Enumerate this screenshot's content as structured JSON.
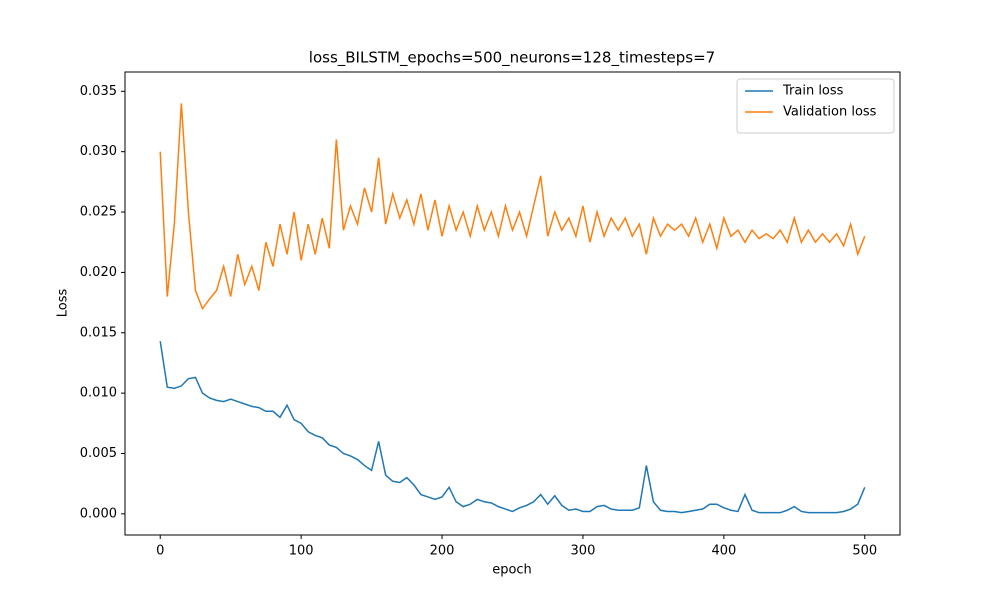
{
  "chart_data": {
    "type": "line",
    "title": "loss_BILSTM_epochs=500_neurons=128_timesteps=7",
    "x_label": "epoch",
    "y_label": "Loss",
    "x": [
      0,
      5,
      10,
      15,
      20,
      25,
      30,
      35,
      40,
      45,
      50,
      55,
      60,
      65,
      70,
      75,
      80,
      85,
      90,
      95,
      100,
      105,
      110,
      115,
      120,
      125,
      130,
      135,
      140,
      145,
      150,
      155,
      160,
      165,
      170,
      175,
      180,
      185,
      190,
      195,
      200,
      205,
      210,
      215,
      220,
      225,
      230,
      235,
      240,
      245,
      250,
      255,
      260,
      265,
      270,
      275,
      280,
      285,
      290,
      295,
      300,
      305,
      310,
      315,
      320,
      325,
      330,
      335,
      340,
      345,
      350,
      355,
      360,
      365,
      370,
      375,
      380,
      385,
      390,
      395,
      400,
      405,
      410,
      415,
      420,
      425,
      430,
      435,
      440,
      445,
      450,
      455,
      460,
      465,
      470,
      475,
      480,
      485,
      490,
      495,
      500
    ],
    "series": [
      {
        "name": "Train loss",
        "color": "#1f77b4",
        "values": [
          0.0143,
          0.0105,
          0.0104,
          0.0106,
          0.0112,
          0.0113,
          0.01,
          0.0096,
          0.0094,
          0.0093,
          0.0095,
          0.0093,
          0.0091,
          0.0089,
          0.0088,
          0.0085,
          0.0085,
          0.008,
          0.009,
          0.0078,
          0.0075,
          0.0068,
          0.0065,
          0.0063,
          0.0057,
          0.0055,
          0.005,
          0.0048,
          0.0045,
          0.004,
          0.0036,
          0.006,
          0.0032,
          0.0027,
          0.0026,
          0.003,
          0.0024,
          0.0016,
          0.0014,
          0.0012,
          0.0014,
          0.0022,
          0.001,
          0.0006,
          0.0008,
          0.0012,
          0.001,
          0.0009,
          0.0006,
          0.0004,
          0.0002,
          0.0005,
          0.0007,
          0.001,
          0.0016,
          0.0008,
          0.0015,
          0.0007,
          0.0003,
          0.0004,
          0.0002,
          0.0002,
          0.0006,
          0.0007,
          0.0004,
          0.0003,
          0.0003,
          0.0003,
          0.0005,
          0.004,
          0.001,
          0.0003,
          0.0002,
          0.0002,
          0.0001,
          0.0002,
          0.0003,
          0.0004,
          0.0008,
          0.0008,
          0.0005,
          0.0003,
          0.0002,
          0.0016,
          0.0003,
          0.0001,
          0.0001,
          0.0001,
          0.0001,
          0.0003,
          0.0006,
          0.0002,
          0.0001,
          0.0001,
          0.0001,
          0.0001,
          0.0001,
          0.0002,
          0.0004,
          0.0008,
          0.0022
        ]
      },
      {
        "name": "Validation loss",
        "color": "#ff7f0e",
        "values": [
          0.03,
          0.018,
          0.024,
          0.034,
          0.025,
          0.0185,
          0.017,
          0.0178,
          0.0185,
          0.0205,
          0.018,
          0.0215,
          0.019,
          0.0205,
          0.0185,
          0.0225,
          0.0205,
          0.024,
          0.0215,
          0.025,
          0.021,
          0.024,
          0.0215,
          0.0245,
          0.022,
          0.031,
          0.0235,
          0.0255,
          0.024,
          0.027,
          0.025,
          0.0295,
          0.024,
          0.0265,
          0.0245,
          0.026,
          0.024,
          0.0265,
          0.0235,
          0.026,
          0.023,
          0.0255,
          0.0235,
          0.025,
          0.023,
          0.0255,
          0.0235,
          0.025,
          0.023,
          0.0255,
          0.0235,
          0.025,
          0.023,
          0.0255,
          0.028,
          0.023,
          0.025,
          0.0235,
          0.0245,
          0.023,
          0.0255,
          0.0225,
          0.025,
          0.023,
          0.0245,
          0.0235,
          0.0245,
          0.023,
          0.024,
          0.0215,
          0.0245,
          0.023,
          0.024,
          0.0235,
          0.024,
          0.023,
          0.0245,
          0.0225,
          0.024,
          0.022,
          0.0245,
          0.023,
          0.0235,
          0.0225,
          0.0235,
          0.0228,
          0.0232,
          0.0228,
          0.0235,
          0.0225,
          0.0245,
          0.0225,
          0.0235,
          0.0225,
          0.0232,
          0.0225,
          0.0232,
          0.0222,
          0.024,
          0.0215,
          0.023
        ]
      }
    ],
    "xlim": [
      -25,
      525
    ],
    "ylim": [
      -0.00175,
      0.0366
    ],
    "xticks": [
      0,
      100,
      200,
      300,
      400,
      500
    ],
    "yticks": [
      {
        "value": 0,
        "label": "0.000"
      },
      {
        "value": 0.005,
        "label": "0.005"
      },
      {
        "value": 0.01,
        "label": "0.010"
      },
      {
        "value": 0.015,
        "label": "0.015"
      },
      {
        "value": 0.02,
        "label": "0.020"
      },
      {
        "value": 0.025,
        "label": "0.025"
      },
      {
        "value": 0.03,
        "label": "0.030"
      },
      {
        "value": 0.035,
        "label": "0.035"
      }
    ],
    "legend": "upper right"
  }
}
